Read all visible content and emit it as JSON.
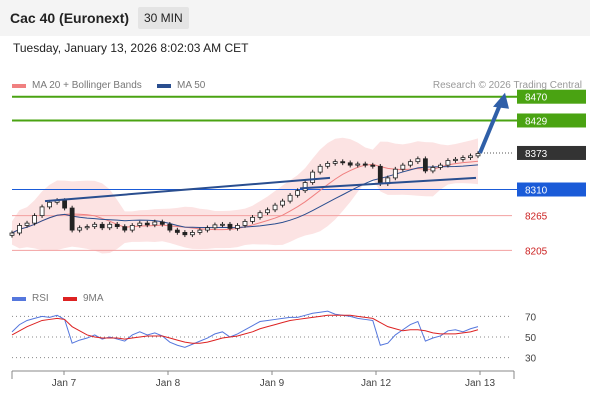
{
  "header": {
    "title": "Cac 40 (Euronext)",
    "timeframe": "30 MIN"
  },
  "datetime": "Tuesday, January 13, 2026 8:02:03 AM CET",
  "legend": {
    "ma20_label": "MA 20 + Bollinger Bands",
    "ma50_label": "MA 50",
    "ma20_color": "#f08080",
    "ma50_color": "#2a4e8f",
    "credit": "Research © 2026 Trading Central"
  },
  "rsi_legend": {
    "rsi_label": "RSI",
    "ma_label": "9MA",
    "rsi_color": "#5577dd",
    "ma_color": "#dd2222"
  },
  "chart_data": [
    {
      "type": "line",
      "price_ylim": [
        8185,
        8485
      ],
      "levels": [
        {
          "value": 8470,
          "label": "8470",
          "kind": "resistance",
          "color": "#4aa312"
        },
        {
          "value": 8429,
          "label": "8429",
          "kind": "resistance",
          "color": "#4aa312"
        },
        {
          "value": 8373,
          "label": "8373",
          "kind": "current",
          "color": "#333333"
        },
        {
          "value": 8310,
          "label": "8310",
          "kind": "pivot",
          "color": "#1a5bd8"
        },
        {
          "value": 8265,
          "label": "8265",
          "kind": "support",
          "color": "#cc2222"
        },
        {
          "value": 8205,
          "label": "8205",
          "kind": "support",
          "color": "#cc2222"
        }
      ],
      "x_tick_labels": [
        "Jan 7",
        "Jan 8",
        "Jan 9",
        "Jan 12",
        "Jan 13"
      ],
      "close": [
        8235,
        8248,
        8252,
        8265,
        8280,
        8288,
        8291,
        8278,
        8240,
        8244,
        8246,
        8250,
        8244,
        8250,
        8246,
        8240,
        8248,
        8252,
        8249,
        8254,
        8250,
        8240,
        8236,
        8232,
        8236,
        8240,
        8244,
        8249,
        8250,
        8243,
        8248,
        8255,
        8262,
        8270,
        8275,
        8283,
        8290,
        8300,
        8308,
        8322,
        8340,
        8350,
        8355,
        8358,
        8356,
        8352,
        8354,
        8352,
        8350,
        8320,
        8330,
        8345,
        8352,
        8358,
        8363,
        8342,
        8348,
        8352,
        8360,
        8362,
        8365,
        8368,
        8372
      ],
      "trendlines": [
        {
          "from_value": 8290,
          "to_value": 8330
        },
        {
          "from_value": 8312,
          "to_value": 8330
        }
      ],
      "projection": {
        "from_value": 8373,
        "to_value": 8470
      }
    },
    {
      "type": "line",
      "name": "RSI",
      "ylim": [
        20,
        80
      ],
      "y_tick_labels": [
        "70",
        "50",
        "30"
      ],
      "rsi": [
        55,
        62,
        66,
        68,
        70,
        69,
        71,
        67,
        44,
        47,
        49,
        52,
        48,
        50,
        48,
        46,
        52,
        55,
        52,
        54,
        51,
        45,
        42,
        40,
        43,
        46,
        49,
        53,
        55,
        50,
        53,
        57,
        61,
        65,
        66,
        67,
        68,
        69,
        69,
        71,
        73,
        74,
        75,
        72,
        71,
        70,
        68,
        67,
        66,
        42,
        44,
        52,
        57,
        62,
        65,
        46,
        49,
        51,
        56,
        57,
        55,
        58,
        60
      ],
      "ma": [
        52,
        56,
        60,
        63,
        66,
        67,
        68,
        67,
        60,
        56,
        52,
        50,
        49,
        49,
        49,
        48,
        49,
        50,
        51,
        51,
        51,
        49,
        47,
        45,
        44,
        44,
        45,
        47,
        49,
        50,
        51,
        53,
        55,
        58,
        60,
        62,
        64,
        66,
        67,
        68,
        69,
        70,
        71,
        71,
        71,
        71,
        70,
        69,
        68,
        64,
        60,
        58,
        56,
        57,
        57,
        56,
        54,
        53,
        53,
        53,
        54,
        55,
        57
      ]
    }
  ]
}
